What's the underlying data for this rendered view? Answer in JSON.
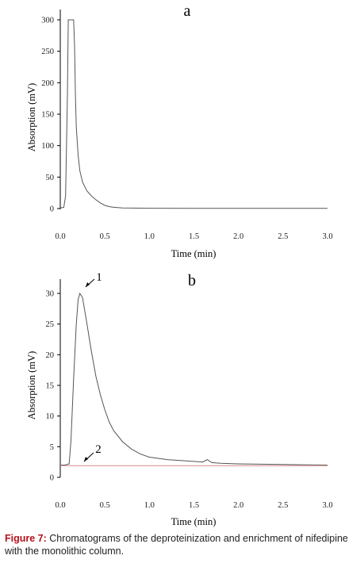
{
  "chart_data": [
    {
      "type": "line",
      "panel": "a",
      "xlabel": "Time (min)",
      "ylabel": "Absorption (mV)",
      "xlim": [
        0.0,
        3.0
      ],
      "ylim": [
        0,
        300
      ],
      "xticks": [
        "0.0",
        "0.5",
        "1.0",
        "1.5",
        "2.0",
        "2.5",
        "3.0"
      ],
      "yticks": [
        "0",
        "50",
        "100",
        "150",
        "200",
        "250",
        "300"
      ],
      "grid": false,
      "series": [
        {
          "color": "#555555",
          "x": [
            0.0,
            0.04,
            0.06,
            0.08,
            0.09,
            0.1,
            0.12,
            0.14,
            0.15,
            0.16,
            0.17,
            0.18,
            0.2,
            0.22,
            0.25,
            0.3,
            0.35,
            0.4,
            0.45,
            0.5,
            0.55,
            0.6,
            0.7,
            0.8,
            1.0,
            1.5,
            2.0,
            2.5,
            3.0
          ],
          "y": [
            1,
            2,
            20,
            180,
            300,
            300,
            300,
            300,
            300,
            260,
            180,
            130,
            85,
            60,
            42,
            28,
            20,
            14,
            9,
            5,
            3,
            2,
            1,
            0.8,
            0.5,
            0.4,
            0.3,
            0.3,
            0.3
          ]
        }
      ]
    },
    {
      "type": "line",
      "panel": "b",
      "xlabel": "Time (min)",
      "ylabel": "Absorption (mV)",
      "xlim": [
        0.0,
        3.0
      ],
      "ylim": [
        0,
        30
      ],
      "xticks": [
        "0.0",
        "0.5",
        "1.0",
        "1.5",
        "2.0",
        "2.5",
        "3.0"
      ],
      "yticks": [
        "0",
        "5",
        "10",
        "15",
        "20",
        "25",
        "30"
      ],
      "grid": false,
      "annotations": [
        "1",
        "2"
      ],
      "series": [
        {
          "color": "#555555",
          "x": [
            0.0,
            0.05,
            0.1,
            0.12,
            0.15,
            0.18,
            0.2,
            0.22,
            0.25,
            0.3,
            0.35,
            0.4,
            0.45,
            0.5,
            0.55,
            0.6,
            0.7,
            0.8,
            0.9,
            1.0,
            1.2,
            1.4,
            1.6,
            1.65,
            1.7,
            1.8,
            2.0,
            2.5,
            3.0
          ],
          "y": [
            2.0,
            2.0,
            2.2,
            6,
            16,
            25,
            29,
            30,
            29.3,
            25,
            20.5,
            16.5,
            13.5,
            11,
            9,
            7.6,
            5.8,
            4.6,
            3.8,
            3.3,
            2.9,
            2.7,
            2.5,
            2.9,
            2.4,
            2.3,
            2.2,
            2.1,
            2.0
          ]
        },
        {
          "color": "#d08a8a",
          "x": [
            0.0,
            0.5,
            1.0,
            1.5,
            2.0,
            2.5,
            3.0
          ],
          "y": [
            1.9,
            1.9,
            1.9,
            1.9,
            1.9,
            1.9,
            1.9
          ]
        }
      ]
    }
  ],
  "caption": {
    "lead": "Figure 7:",
    "text": " Chromatograms of the deproteinization and enrichment of nifedipine with the monolithic column."
  }
}
